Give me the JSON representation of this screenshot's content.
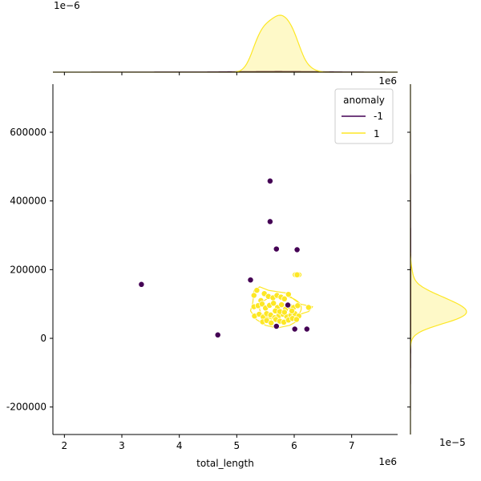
{
  "chart_data": {
    "type": "scatter",
    "title": "",
    "xlabel": "total_length",
    "ylabel": "",
    "x_offset_label": "1e6",
    "y_offset_label": "1e6",
    "top_marginal_offset_label": "1e−6",
    "right_marginal_offset_label": "1e−5",
    "xlim": [
      1.8,
      7.8
    ],
    "ylim": [
      -280000,
      740000
    ],
    "x_ticks": [
      2,
      3,
      4,
      5,
      6,
      7
    ],
    "x_tick_labels": [
      "2",
      "3",
      "4",
      "5",
      "6",
      "7"
    ],
    "y_ticks": [
      -200000,
      0,
      200000,
      400000,
      600000
    ],
    "y_tick_labels": [
      "-200000",
      "0",
      "200000",
      "400000",
      "600000"
    ],
    "grid": false,
    "legend": {
      "title": "anomaly",
      "placement": "top-right",
      "entries": [
        {
          "label": "-1",
          "color": "#440154"
        },
        {
          "label": "1",
          "color": "#fde725"
        }
      ]
    },
    "series": [
      {
        "name": "-1",
        "color": "#440154",
        "points": [
          [
            3.34,
            157000
          ],
          [
            4.67,
            10000
          ],
          [
            5.24,
            170000
          ],
          [
            5.58,
            458000
          ],
          [
            5.58,
            340000
          ],
          [
            5.69,
            260000
          ],
          [
            5.69,
            35000
          ],
          [
            5.89,
            97000
          ],
          [
            6.01,
            27000
          ],
          [
            6.05,
            258000
          ],
          [
            6.22,
            27000
          ]
        ]
      },
      {
        "name": "1",
        "color": "#fde725",
        "points": [
          [
            5.3,
            125000
          ],
          [
            5.35,
            140000
          ],
          [
            5.42,
            110000
          ],
          [
            5.48,
            130000
          ],
          [
            5.55,
            122000
          ],
          [
            5.63,
            118000
          ],
          [
            5.7,
            125000
          ],
          [
            5.77,
            120000
          ],
          [
            5.83,
            115000
          ],
          [
            5.9,
            128000
          ],
          [
            5.3,
            92000
          ],
          [
            5.37,
            95000
          ],
          [
            5.44,
            100000
          ],
          [
            5.5,
            88000
          ],
          [
            5.57,
            96000
          ],
          [
            5.64,
            102000
          ],
          [
            5.71,
            90000
          ],
          [
            5.78,
            98000
          ],
          [
            5.85,
            85000
          ],
          [
            5.92,
            93000
          ],
          [
            5.99,
            90000
          ],
          [
            6.06,
            95000
          ],
          [
            5.31,
            65000
          ],
          [
            5.39,
            70000
          ],
          [
            5.46,
            62000
          ],
          [
            5.52,
            72000
          ],
          [
            5.59,
            68000
          ],
          [
            5.66,
            60000
          ],
          [
            5.73,
            66000
          ],
          [
            5.8,
            70000
          ],
          [
            5.87,
            63000
          ],
          [
            5.94,
            67000
          ],
          [
            6.01,
            72000
          ],
          [
            6.08,
            65000
          ],
          [
            5.45,
            48000
          ],
          [
            5.52,
            52000
          ],
          [
            5.6,
            45000
          ],
          [
            5.68,
            55000
          ],
          [
            5.75,
            50000
          ],
          [
            5.82,
            47000
          ],
          [
            5.9,
            53000
          ],
          [
            5.97,
            58000
          ],
          [
            6.04,
            55000
          ],
          [
            5.67,
            80000
          ],
          [
            5.75,
            78000
          ],
          [
            5.83,
            76000
          ],
          [
            5.96,
            80000
          ],
          [
            6.25,
            90000
          ],
          [
            6.05,
            185000
          ]
        ]
      }
    ]
  }
}
